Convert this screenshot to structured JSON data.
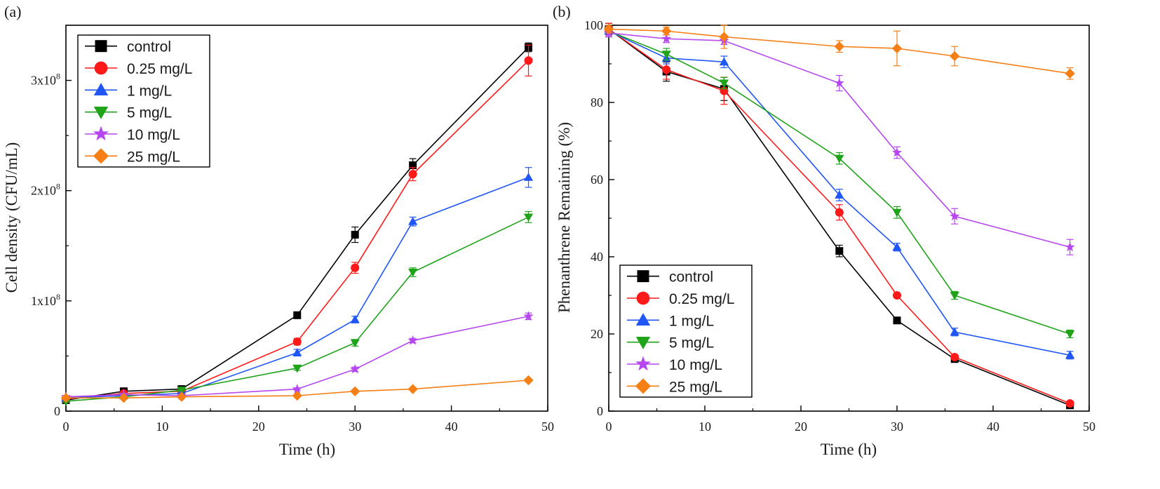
{
  "chart_data": [
    {
      "type": "line",
      "panel_label": "(a)",
      "xlabel": "Time (h)",
      "ylabel": "Cell density (CFU/mL)",
      "xlim": [
        0,
        50
      ],
      "ylim": [
        0,
        350000000
      ],
      "xticks": [
        0,
        10,
        20,
        30,
        40,
        50
      ],
      "x_tick_labels": [
        "0",
        "10",
        "20",
        "30",
        "40",
        "50"
      ],
      "yticks": [
        0,
        100000000,
        200000000,
        300000000
      ],
      "y_tick_labels": [
        {
          "base": "0",
          "exp": ""
        },
        {
          "base": "1x10",
          "exp": "8"
        },
        {
          "base": "2x10",
          "exp": "8"
        },
        {
          "base": "3x10",
          "exp": "8"
        }
      ],
      "legend_position": "top-left",
      "x": [
        0,
        6,
        12,
        24,
        30,
        36,
        48
      ],
      "series": [
        {
          "name": "control",
          "color": "#000000",
          "marker": "square",
          "values": [
            10000000,
            18000000,
            20000000,
            87000000,
            160000000,
            223000000,
            330000000
          ],
          "errors": [
            1000000,
            1000000,
            1000000,
            3000000,
            7000000,
            6000000,
            4000000
          ]
        },
        {
          "name": "0.25 mg/L",
          "color": "#ff1a1a",
          "marker": "circle",
          "values": [
            11000000,
            16000000,
            18000000,
            63000000,
            130000000,
            215000000,
            318000000
          ],
          "errors": [
            1000000,
            1000000,
            1000000,
            3000000,
            5000000,
            6000000,
            14000000
          ]
        },
        {
          "name": "1 mg/L",
          "color": "#1f56f5",
          "marker": "triangle-up",
          "values": [
            12000000,
            14000000,
            16000000,
            53000000,
            83000000,
            172000000,
            212000000
          ],
          "errors": [
            1000000,
            1000000,
            1000000,
            3000000,
            3000000,
            4000000,
            9000000
          ]
        },
        {
          "name": "5 mg/L",
          "color": "#1fa319",
          "marker": "triangle-down",
          "values": [
            9000000,
            13000000,
            19000000,
            39000000,
            62000000,
            126000000,
            176000000
          ],
          "errors": [
            1000000,
            1000000,
            1000000,
            2000000,
            3000000,
            4000000,
            5000000
          ]
        },
        {
          "name": "10 mg/L",
          "color": "#b646f0",
          "marker": "star",
          "values": [
            13000000,
            15000000,
            14000000,
            20000000,
            38000000,
            64000000,
            86000000
          ],
          "errors": [
            1000000,
            1000000,
            1000000,
            1000000,
            2000000,
            2000000,
            3000000
          ]
        },
        {
          "name": "25 mg/L",
          "color": "#f57f15",
          "marker": "diamond",
          "values": [
            12000000,
            12000000,
            13000000,
            14000000,
            18000000,
            20000000,
            28000000
          ],
          "errors": [
            1000000,
            1000000,
            1000000,
            1000000,
            1000000,
            1000000,
            1000000
          ]
        }
      ]
    },
    {
      "type": "line",
      "panel_label": "(b)",
      "xlabel": "Time (h)",
      "ylabel": "Phenanthrene Remaining (%)",
      "xlim": [
        0,
        50
      ],
      "ylim": [
        0,
        100
      ],
      "xticks": [
        0,
        10,
        20,
        30,
        40,
        50
      ],
      "x_tick_labels": [
        "0",
        "10",
        "20",
        "30",
        "40",
        "50"
      ],
      "yticks": [
        0,
        20,
        40,
        60,
        80,
        100
      ],
      "y_tick_labels": [
        {
          "base": "0",
          "exp": ""
        },
        {
          "base": "20",
          "exp": ""
        },
        {
          "base": "40",
          "exp": ""
        },
        {
          "base": "60",
          "exp": ""
        },
        {
          "base": "80",
          "exp": ""
        },
        {
          "base": "100",
          "exp": ""
        }
      ],
      "legend_position": "bottom-left",
      "x": [
        0,
        6,
        12,
        24,
        30,
        36,
        48
      ],
      "series": [
        {
          "name": "control",
          "color": "#000000",
          "marker": "square",
          "values": [
            99,
            88,
            83.5,
            41.5,
            23.5,
            13.5,
            1.5
          ],
          "errors": [
            1.5,
            2.5,
            3,
            1.5,
            0.5,
            0.5,
            0.5
          ]
        },
        {
          "name": "0.25 mg/L",
          "color": "#ff1a1a",
          "marker": "circle",
          "values": [
            99,
            88.5,
            83,
            51.5,
            30,
            14,
            2
          ],
          "errors": [
            1.5,
            2.5,
            3.5,
            2,
            0.5,
            0.5,
            0.5
          ]
        },
        {
          "name": "1 mg/L",
          "color": "#1f56f5",
          "marker": "triangle-up",
          "values": [
            98.5,
            91.5,
            90.5,
            56,
            42.5,
            20.5,
            14.5
          ],
          "errors": [
            1.5,
            1.5,
            1.5,
            1.5,
            1,
            1,
            1
          ]
        },
        {
          "name": "5 mg/L",
          "color": "#1fa319",
          "marker": "triangle-down",
          "values": [
            98.5,
            92.5,
            85,
            65.5,
            51.5,
            30,
            20
          ],
          "errors": [
            1.5,
            1.5,
            1.5,
            1.5,
            1.5,
            1,
            1
          ]
        },
        {
          "name": "10 mg/L",
          "color": "#b646f0",
          "marker": "star",
          "values": [
            98,
            96.5,
            96,
            85,
            67,
            50.5,
            42.5
          ],
          "errors": [
            1,
            1,
            1,
            2,
            1.5,
            2,
            2
          ]
        },
        {
          "name": "25 mg/L",
          "color": "#f57f15",
          "marker": "diamond",
          "values": [
            99,
            98.5,
            97,
            94.5,
            94,
            92,
            87.5
          ],
          "errors": [
            1,
            1,
            3,
            1.5,
            4.5,
            2.5,
            1.5
          ]
        }
      ]
    }
  ]
}
